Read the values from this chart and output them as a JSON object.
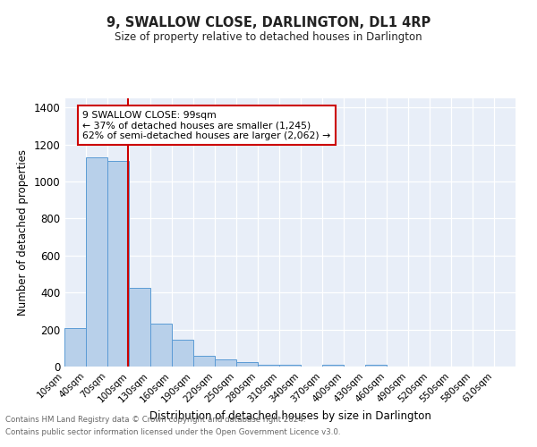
{
  "title": "9, SWALLOW CLOSE, DARLINGTON, DL1 4RP",
  "subtitle": "Size of property relative to detached houses in Darlington",
  "xlabel": "Distribution of detached houses by size in Darlington",
  "ylabel": "Number of detached properties",
  "bar_labels": [
    "10sqm",
    "40sqm",
    "70sqm",
    "100sqm",
    "130sqm",
    "160sqm",
    "190sqm",
    "220sqm",
    "250sqm",
    "280sqm",
    "310sqm",
    "340sqm",
    "370sqm",
    "400sqm",
    "430sqm",
    "460sqm",
    "490sqm",
    "520sqm",
    "550sqm",
    "580sqm",
    "610sqm"
  ],
  "bar_values": [
    210,
    1130,
    1110,
    425,
    230,
    143,
    57,
    40,
    22,
    12,
    12,
    0,
    12,
    0,
    12,
    0,
    0,
    0,
    0,
    0,
    0
  ],
  "bar_color": "#b8d0ea",
  "bar_edge_color": "#5b9bd5",
  "background_color": "#e8eef8",
  "grid_color": "#ffffff",
  "red_line_x": 2.97,
  "annotation_title": "9 SWALLOW CLOSE: 99sqm",
  "annotation_line1": "← 37% of detached houses are smaller (1,245)",
  "annotation_line2": "62% of semi-detached houses are larger (2,062) →",
  "annotation_box_color": "#ffffff",
  "annotation_border_color": "#cc0000",
  "red_line_color": "#cc0000",
  "ylim": [
    0,
    1450
  ],
  "yticks": [
    0,
    200,
    400,
    600,
    800,
    1000,
    1200,
    1400
  ],
  "footer1": "Contains HM Land Registry data © Crown copyright and database right 2024.",
  "footer2": "Contains public sector information licensed under the Open Government Licence v3.0."
}
